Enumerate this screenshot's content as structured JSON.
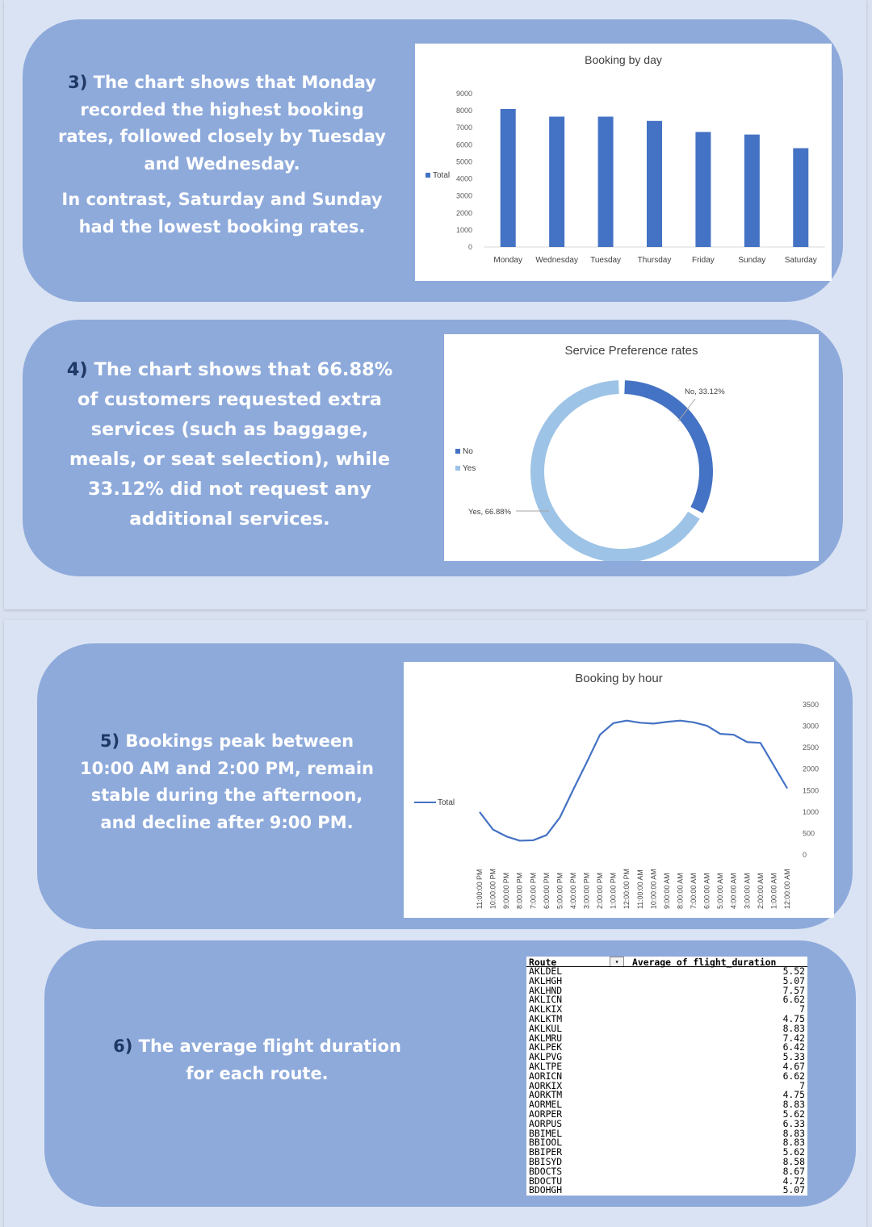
{
  "section3": {
    "number": "3)",
    "text1": " The chart shows that Monday recorded the highest booking rates, followed closely by Tuesday and Wednesday.",
    "text2": "In contrast, Saturday and Sunday had the lowest booking rates."
  },
  "section4": {
    "number": "4)",
    "text": " The chart shows that 66.88% of customers requested extra services (such as baggage, meals, or seat selection), while 33.12% did not request any additional services."
  },
  "section5": {
    "number": "5)",
    "text": " Bookings peak between 10:00 AM and 2:00 PM, remain stable during the afternoon, and decline after 9:00 PM."
  },
  "section6": {
    "number": "6)",
    "text": " The average flight duration for each route."
  },
  "colors": {
    "card": "#8eaadb",
    "accent_dark": "#1f3864",
    "bar": "#4472c4",
    "yes": "#9dc3e6",
    "no": "#4472c4"
  },
  "chart_data": [
    {
      "type": "bar",
      "title": "Booking by day",
      "categories": [
        "Monday",
        "Wednesday",
        "Tuesday",
        "Thursday",
        "Friday",
        "Sunday",
        "Saturday"
      ],
      "series": [
        {
          "name": "Total",
          "values": [
            8100,
            7650,
            7650,
            7400,
            6750,
            6600,
            5800
          ]
        }
      ],
      "yticks": [
        0,
        1000,
        2000,
        3000,
        4000,
        5000,
        6000,
        7000,
        8000,
        9000
      ],
      "ylim": [
        0,
        9000
      ],
      "legend": "left"
    },
    {
      "type": "pie",
      "title": "Service Preference rates",
      "donut": true,
      "slices": [
        {
          "name": "No",
          "value": 33.12,
          "label": "No, 33.12%"
        },
        {
          "name": "Yes",
          "value": 66.88,
          "label": "Yes, 66.88%"
        }
      ],
      "legend": "left"
    },
    {
      "type": "line",
      "title": "Booking by hour",
      "series": [
        {
          "name": "Total",
          "values": [
            1000,
            590,
            430,
            330,
            340,
            460,
            870,
            1520,
            2150,
            2800,
            3070,
            3130,
            3080,
            3060,
            3100,
            3130,
            3090,
            3010,
            2820,
            2800,
            2630,
            2610,
            2080,
            1550
          ]
        }
      ],
      "x": [
        "11:00:00 PM",
        "10:00:00 PM",
        "9:00:00 PM",
        "8:00:00 PM",
        "7:00:00 PM",
        "6:00:00 PM",
        "5:00:00 PM",
        "4:00:00 PM",
        "3:00:00 PM",
        "2:00:00 PM",
        "1:00:00 PM",
        "12:00:00 PM",
        "11:00:00 AM",
        "10:00:00 AM",
        "9:00:00 AM",
        "8:00:00 AM",
        "7:00:00 AM",
        "6:00:00 AM",
        "5:00:00 AM",
        "4:00:00 AM",
        "3:00:00 AM",
        "2:00:00 AM",
        "1:00:00 AM",
        "12:00:00 AM"
      ],
      "yticks": [
        0,
        500,
        1000,
        1500,
        2000,
        2500,
        3000,
        3500
      ],
      "ylim": [
        0,
        3500
      ],
      "yaxis_side": "right",
      "legend": "left"
    },
    {
      "type": "table",
      "headers": [
        "Route",
        "Average of flight_duration"
      ],
      "rows": [
        [
          "AKLDEL",
          "5.52"
        ],
        [
          "AKLHGH",
          "5.07"
        ],
        [
          "AKLHND",
          "7.57"
        ],
        [
          "AKLICN",
          "6.62"
        ],
        [
          "AKLKIX",
          "7"
        ],
        [
          "AKLKTM",
          "4.75"
        ],
        [
          "AKLKUL",
          "8.83"
        ],
        [
          "AKLMRU",
          "7.42"
        ],
        [
          "AKLPEK",
          "6.42"
        ],
        [
          "AKLPVG",
          "5.33"
        ],
        [
          "AKLTPE",
          "4.67"
        ],
        [
          "AORICN",
          "6.62"
        ],
        [
          "AORKIX",
          "7"
        ],
        [
          "AORKTM",
          "4.75"
        ],
        [
          "AORMEL",
          "8.83"
        ],
        [
          "AORPER",
          "5.62"
        ],
        [
          "AORPUS",
          "6.33"
        ],
        [
          "BBIMEL",
          "8.83"
        ],
        [
          "BBIOOL",
          "8.83"
        ],
        [
          "BBIPER",
          "5.62"
        ],
        [
          "BBISYD",
          "8.58"
        ],
        [
          "BDOCTS",
          "8.67"
        ],
        [
          "BDOCTU",
          "4.72"
        ],
        [
          "BDOHGH",
          "5.07"
        ]
      ]
    }
  ]
}
